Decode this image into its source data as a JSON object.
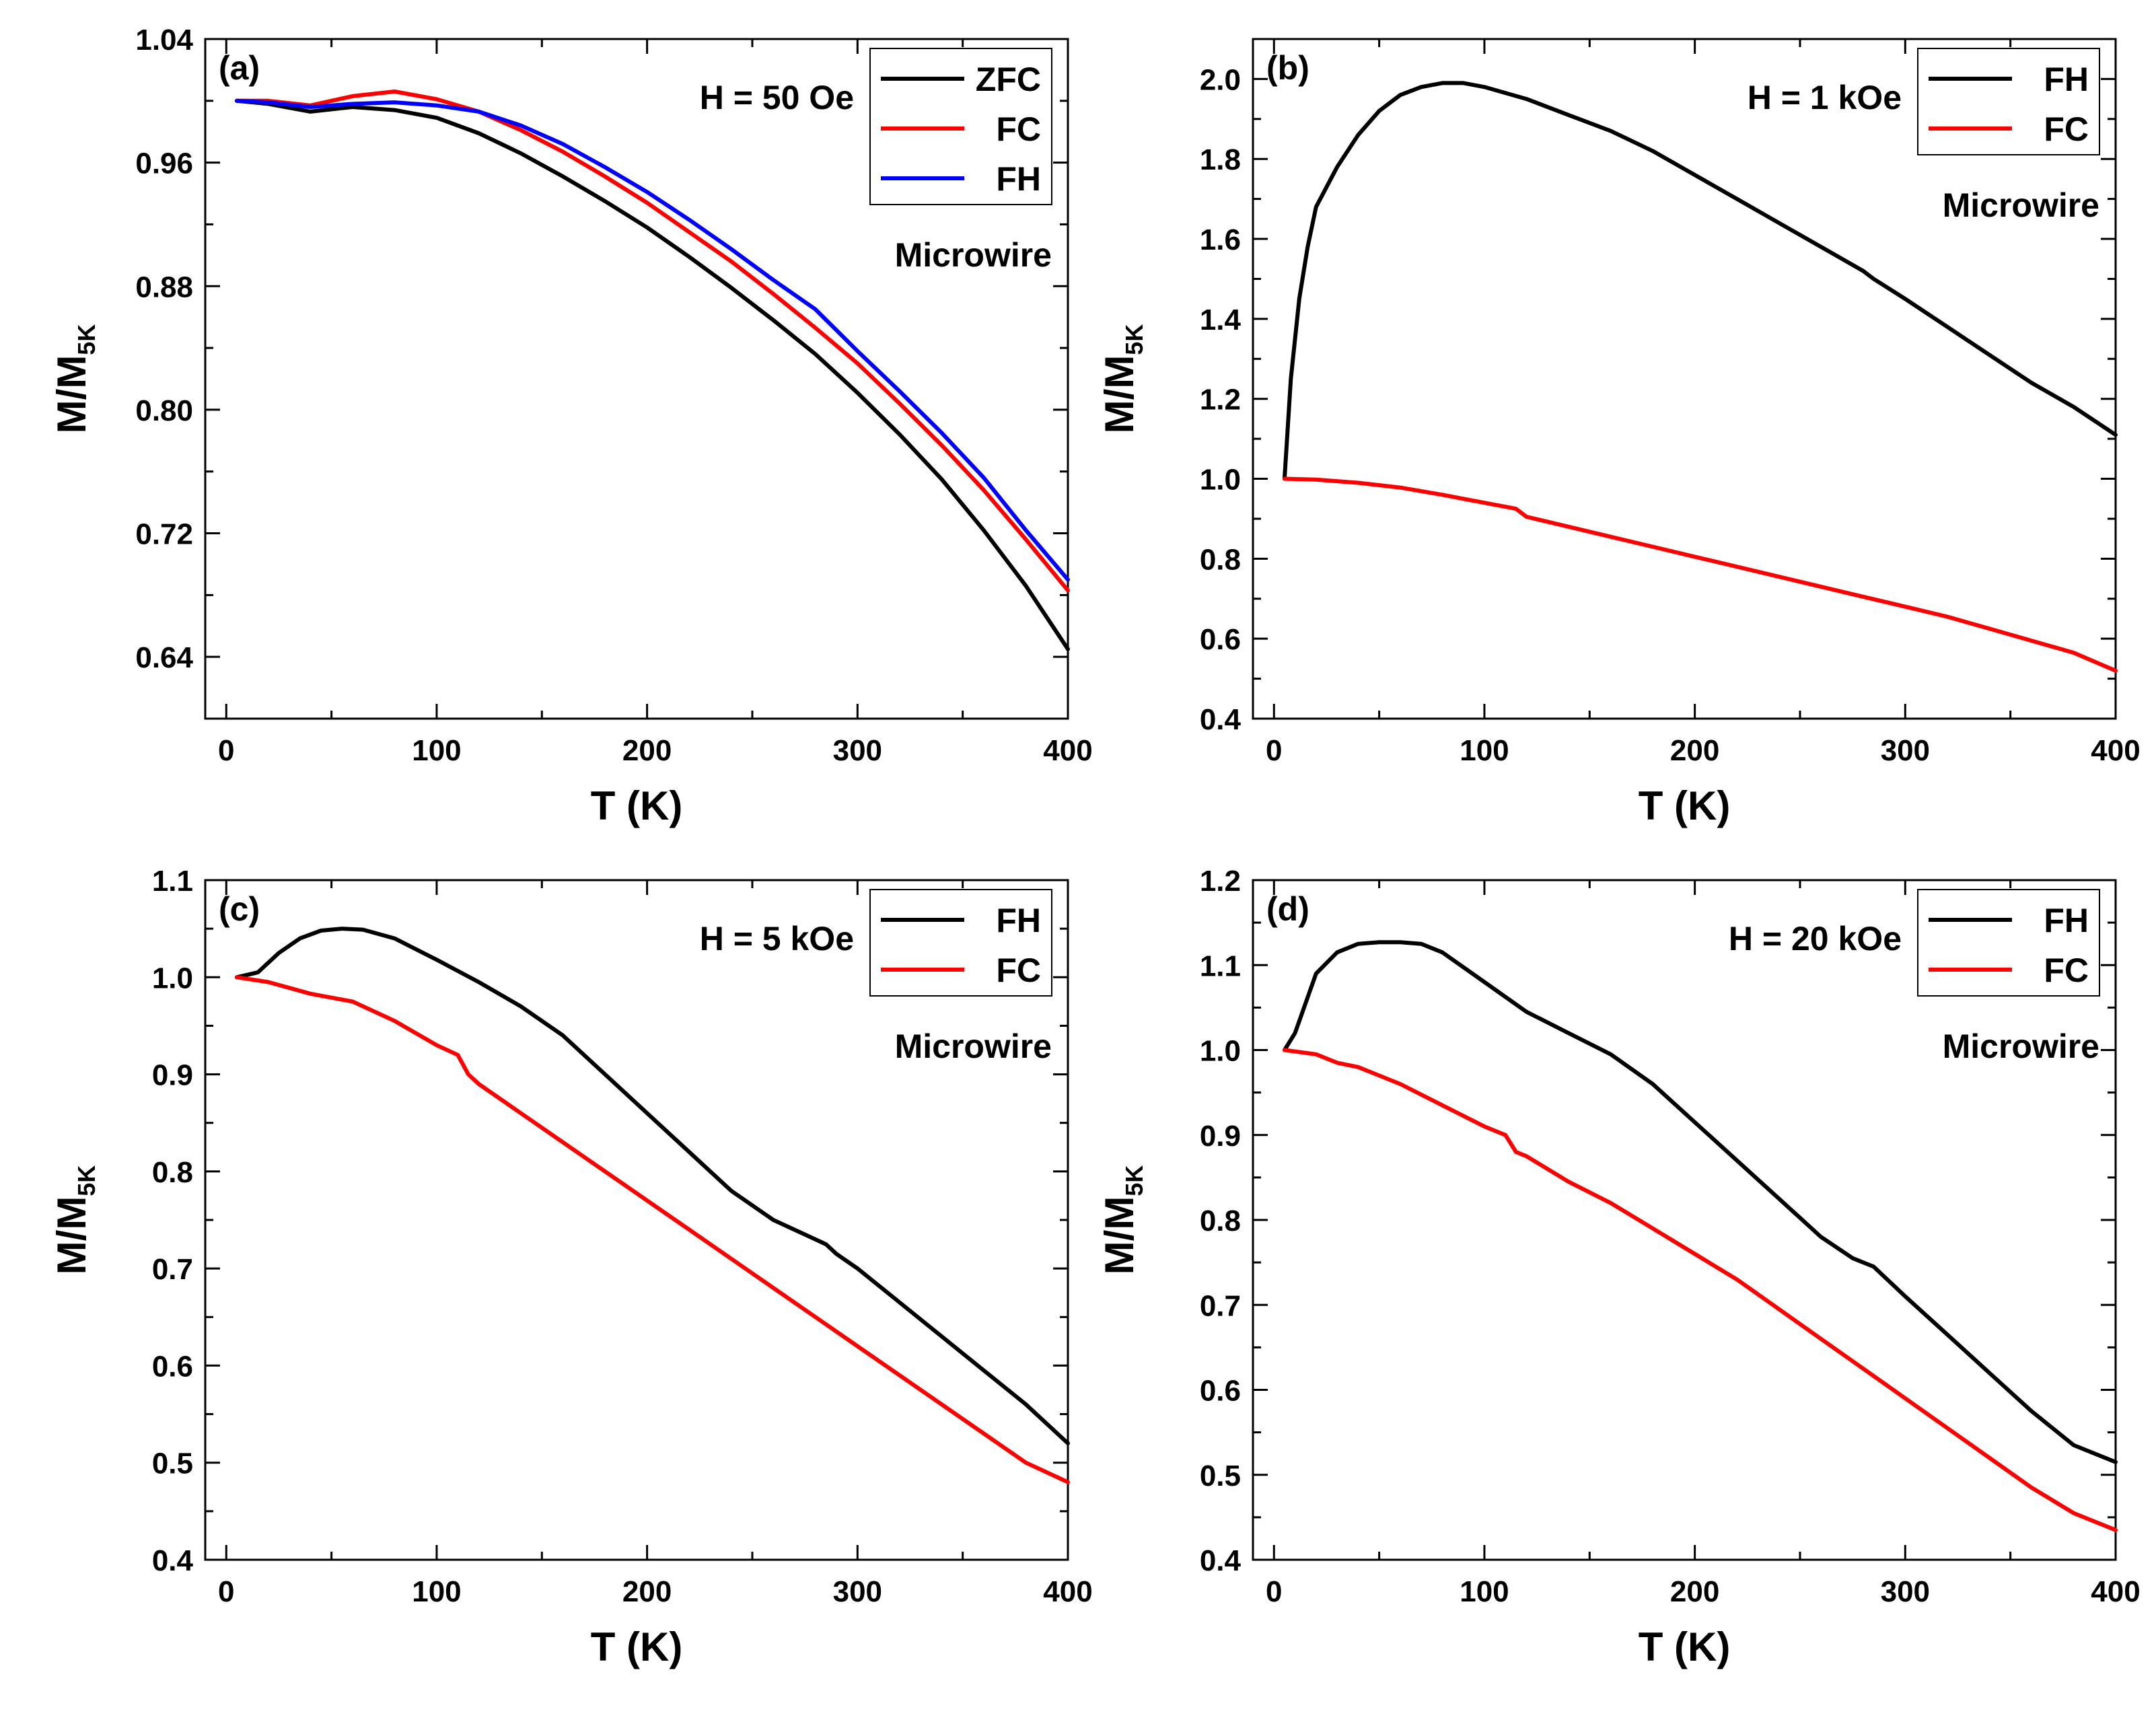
{
  "chart_data": [
    {
      "type": "line",
      "panel_label": "(a)",
      "field_label": "H = 50 Oe",
      "annotation": "Microwire",
      "xlabel": "T (K)",
      "ylabel_main": "M/M",
      "ylabel_sub": "5K",
      "xlim": [
        -10,
        400
      ],
      "ylim": [
        0.6,
        1.04
      ],
      "xticks": [
        0,
        100,
        200,
        300,
        400
      ],
      "yticks": [
        0.64,
        0.72,
        0.8,
        0.88,
        0.96,
        1.04
      ],
      "ytick_decimals": 2,
      "legend_position": "top-right",
      "series": [
        {
          "name": "ZFC",
          "color": "#000000",
          "x": [
            5,
            20,
            40,
            60,
            80,
            100,
            120,
            140,
            160,
            180,
            200,
            220,
            240,
            260,
            280,
            300,
            320,
            340,
            360,
            380,
            400
          ],
          "y": [
            1.0,
            0.998,
            0.993,
            0.996,
            0.994,
            0.989,
            0.979,
            0.966,
            0.951,
            0.935,
            0.918,
            0.899,
            0.879,
            0.858,
            0.836,
            0.811,
            0.784,
            0.755,
            0.722,
            0.686,
            0.645
          ]
        },
        {
          "name": "FC",
          "color": "#ff0000",
          "x": [
            5,
            20,
            40,
            60,
            80,
            100,
            120,
            140,
            160,
            180,
            200,
            220,
            240,
            260,
            280,
            300,
            320,
            340,
            360,
            380,
            400
          ],
          "y": [
            1.0,
            1.0,
            0.997,
            1.003,
            1.006,
            1.001,
            0.993,
            0.981,
            0.967,
            0.951,
            0.934,
            0.915,
            0.896,
            0.875,
            0.853,
            0.83,
            0.804,
            0.777,
            0.748,
            0.716,
            0.683
          ]
        },
        {
          "name": "FH",
          "color": "#0000ff",
          "x": [
            5,
            20,
            40,
            60,
            80,
            100,
            120,
            140,
            160,
            180,
            200,
            220,
            240,
            260,
            280,
            300,
            320,
            340,
            360,
            380,
            400
          ],
          "y": [
            1.0,
            0.999,
            0.996,
            0.998,
            0.999,
            0.997,
            0.993,
            0.984,
            0.972,
            0.957,
            0.941,
            0.923,
            0.904,
            0.884,
            0.865,
            0.838,
            0.812,
            0.785,
            0.756,
            0.722,
            0.69
          ]
        }
      ]
    },
    {
      "type": "line",
      "panel_label": "(b)",
      "field_label": "H = 1 kOe",
      "annotation": "Microwire",
      "xlabel": "T (K)",
      "ylabel_main": "M/M",
      "ylabel_sub": "5K",
      "xlim": [
        -10,
        400
      ],
      "ylim": [
        0.4,
        2.1
      ],
      "xticks": [
        0,
        100,
        200,
        300,
        400
      ],
      "yticks": [
        0.4,
        0.6,
        0.8,
        1.0,
        1.2,
        1.4,
        1.6,
        1.8,
        2.0
      ],
      "ytick_decimals": 1,
      "legend_position": "top-right",
      "series": [
        {
          "name": "FH",
          "color": "#000000",
          "x": [
            5,
            8,
            12,
            16,
            20,
            30,
            40,
            50,
            60,
            70,
            80,
            90,
            100,
            120,
            140,
            160,
            180,
            200,
            220,
            240,
            260,
            280,
            285,
            300,
            320,
            340,
            360,
            380,
            400
          ],
          "y": [
            1.0,
            1.25,
            1.45,
            1.58,
            1.68,
            1.78,
            1.86,
            1.92,
            1.96,
            1.98,
            1.99,
            1.99,
            1.98,
            1.95,
            1.91,
            1.87,
            1.82,
            1.76,
            1.7,
            1.64,
            1.58,
            1.52,
            1.5,
            1.45,
            1.38,
            1.31,
            1.24,
            1.18,
            1.11
          ]
        },
        {
          "name": "FC",
          "color": "#ff0000",
          "x": [
            5,
            20,
            40,
            60,
            80,
            100,
            115,
            120,
            140,
            160,
            180,
            200,
            220,
            240,
            260,
            280,
            300,
            320,
            340,
            360,
            380,
            400
          ],
          "y": [
            1.0,
            0.998,
            0.99,
            0.978,
            0.96,
            0.94,
            0.925,
            0.905,
            0.88,
            0.855,
            0.83,
            0.805,
            0.78,
            0.755,
            0.73,
            0.705,
            0.68,
            0.655,
            0.625,
            0.595,
            0.565,
            0.52
          ]
        }
      ]
    },
    {
      "type": "line",
      "panel_label": "(c)",
      "field_label": "H = 5 kOe",
      "annotation": "Microwire",
      "xlabel": "T (K)",
      "ylabel_main": "M/M",
      "ylabel_sub": "5K",
      "xlim": [
        -10,
        400
      ],
      "ylim": [
        0.4,
        1.1
      ],
      "xticks": [
        0,
        100,
        200,
        300,
        400
      ],
      "yticks": [
        0.4,
        0.5,
        0.6,
        0.7,
        0.8,
        0.9,
        1.0,
        1.1
      ],
      "ytick_decimals": 1,
      "legend_position": "top-right",
      "series": [
        {
          "name": "FH",
          "color": "#000000",
          "x": [
            5,
            15,
            25,
            35,
            45,
            55,
            65,
            80,
            100,
            120,
            140,
            160,
            180,
            200,
            220,
            240,
            260,
            275,
            285,
            290,
            300,
            320,
            340,
            360,
            380,
            400
          ],
          "y": [
            1.0,
            1.005,
            1.025,
            1.04,
            1.048,
            1.05,
            1.049,
            1.04,
            1.018,
            0.995,
            0.97,
            0.94,
            0.9,
            0.86,
            0.82,
            0.78,
            0.75,
            0.735,
            0.725,
            0.715,
            0.7,
            0.665,
            0.63,
            0.595,
            0.56,
            0.52
          ]
        },
        {
          "name": "FC",
          "color": "#ff0000",
          "x": [
            5,
            20,
            40,
            60,
            80,
            100,
            110,
            115,
            120,
            140,
            160,
            180,
            200,
            220,
            240,
            260,
            280,
            300,
            320,
            340,
            360,
            380,
            400
          ],
          "y": [
            1.0,
            0.995,
            0.983,
            0.975,
            0.955,
            0.93,
            0.92,
            0.9,
            0.89,
            0.86,
            0.83,
            0.8,
            0.77,
            0.74,
            0.71,
            0.68,
            0.65,
            0.62,
            0.59,
            0.56,
            0.53,
            0.5,
            0.48
          ]
        }
      ]
    },
    {
      "type": "line",
      "panel_label": "(d)",
      "field_label": "H = 20 kOe",
      "annotation": "Microwire",
      "xlabel": "T (K)",
      "ylabel_main": "M/M",
      "ylabel_sub": "5K",
      "xlim": [
        -10,
        400
      ],
      "ylim": [
        0.4,
        1.2
      ],
      "xticks": [
        0,
        100,
        200,
        300,
        400
      ],
      "yticks": [
        0.4,
        0.5,
        0.6,
        0.7,
        0.8,
        0.9,
        1.0,
        1.1,
        1.2
      ],
      "ytick_decimals": 1,
      "legend_position": "top-right",
      "series": [
        {
          "name": "FH",
          "color": "#000000",
          "x": [
            5,
            10,
            20,
            30,
            40,
            50,
            60,
            70,
            80,
            100,
            120,
            140,
            160,
            180,
            200,
            220,
            240,
            260,
            275,
            285,
            300,
            320,
            340,
            360,
            380,
            400
          ],
          "y": [
            1.0,
            1.02,
            1.09,
            1.115,
            1.125,
            1.127,
            1.127,
            1.125,
            1.115,
            1.08,
            1.045,
            1.02,
            0.995,
            0.96,
            0.915,
            0.87,
            0.825,
            0.78,
            0.755,
            0.745,
            0.71,
            0.665,
            0.62,
            0.575,
            0.535,
            0.515
          ]
        },
        {
          "name": "FC",
          "color": "#ff0000",
          "x": [
            5,
            20,
            30,
            40,
            60,
            80,
            100,
            110,
            115,
            120,
            140,
            160,
            180,
            200,
            220,
            240,
            260,
            280,
            300,
            320,
            340,
            360,
            380,
            400
          ],
          "y": [
            1.0,
            0.995,
            0.985,
            0.98,
            0.96,
            0.935,
            0.91,
            0.9,
            0.88,
            0.875,
            0.845,
            0.82,
            0.79,
            0.76,
            0.73,
            0.695,
            0.66,
            0.625,
            0.59,
            0.555,
            0.52,
            0.485,
            0.455,
            0.435
          ]
        }
      ]
    }
  ]
}
